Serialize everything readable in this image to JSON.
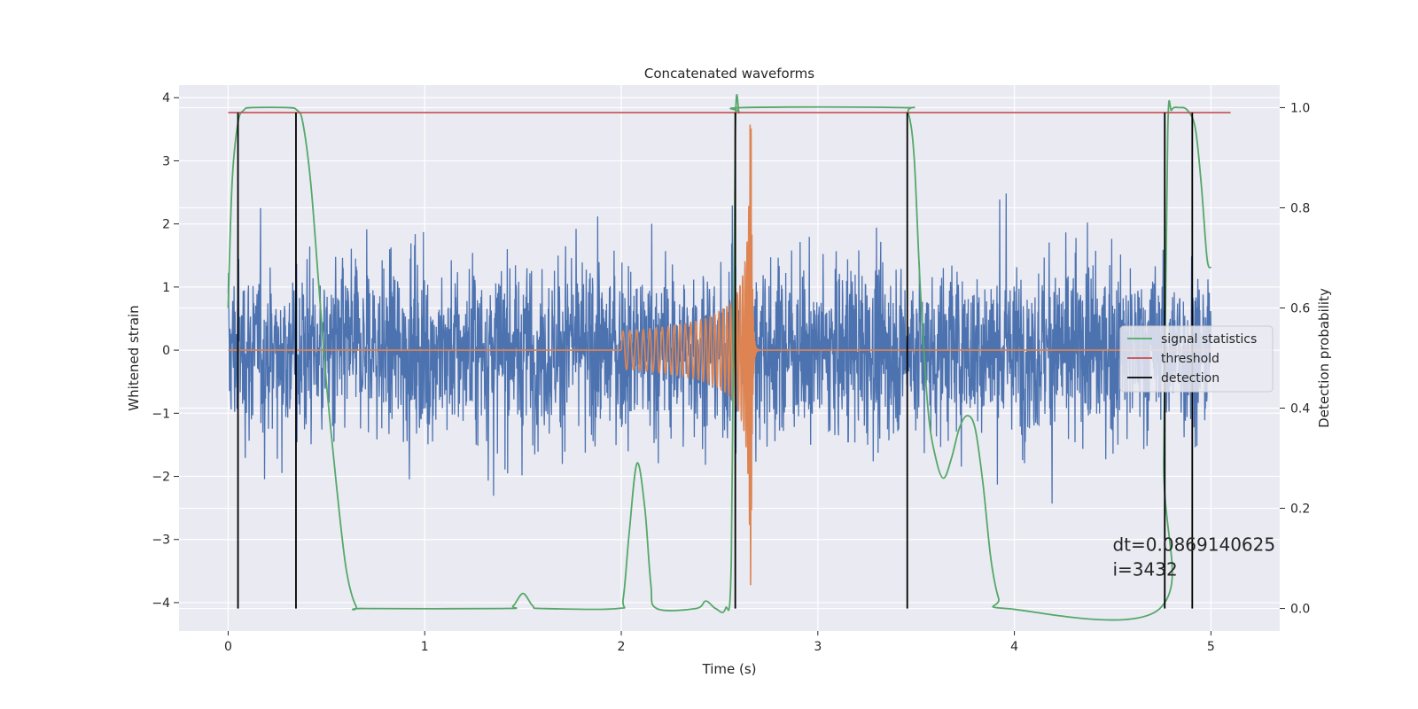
{
  "chart_data": {
    "type": "line",
    "title": "Concatenated waveforms",
    "xlabel": "Time (s)",
    "ylabel_left": "Whitened strain",
    "ylabel_right": "Detection probability",
    "xlim": [
      -0.25,
      5.35
    ],
    "ylim_left": [
      -4.45,
      4.2
    ],
    "ylim_right": [
      -0.045,
      1.045
    ],
    "x_ticks": [
      0,
      1,
      2,
      3,
      4,
      5
    ],
    "y_left_ticks": [
      -4,
      -3,
      -2,
      -1,
      0,
      1,
      2,
      3,
      4
    ],
    "y_right_ticks": [
      0.0,
      0.2,
      0.4,
      0.6,
      0.8,
      1.0
    ],
    "grid": true,
    "legend_position": "center-right",
    "series": [
      {
        "name": "",
        "axis": "left",
        "kind": "noise",
        "color": "#4c72b0",
        "x_range": [
          0,
          5
        ],
        "amplitude_typical": 1.0,
        "peak_max": 3.2,
        "peak_min": -3.4
      },
      {
        "name": "",
        "axis": "left",
        "kind": "chirp",
        "color": "#dd8452",
        "start": 2.0,
        "merger": 2.66,
        "end": 2.72,
        "peak": 3.8,
        "trough": -3.4
      },
      {
        "name": "signal statistics",
        "axis": "right",
        "color": "#55a868",
        "points": [
          [
            0.0,
            0.6
          ],
          [
            0.02,
            0.85
          ],
          [
            0.05,
            0.97
          ],
          [
            0.08,
            0.995
          ],
          [
            0.12,
            1.0
          ],
          [
            0.3,
            1.0
          ],
          [
            0.35,
            0.995
          ],
          [
            0.38,
            0.97
          ],
          [
            0.42,
            0.85
          ],
          [
            0.46,
            0.65
          ],
          [
            0.5,
            0.45
          ],
          [
            0.55,
            0.25
          ],
          [
            0.6,
            0.08
          ],
          [
            0.65,
            0.005
          ],
          [
            0.7,
            0.0
          ],
          [
            1.4,
            0.0
          ],
          [
            1.45,
            0.005
          ],
          [
            1.5,
            0.03
          ],
          [
            1.55,
            0.005
          ],
          [
            1.6,
            0.0
          ],
          [
            1.98,
            0.0
          ],
          [
            2.01,
            0.02
          ],
          [
            2.04,
            0.15
          ],
          [
            2.08,
            0.29
          ],
          [
            2.12,
            0.2
          ],
          [
            2.15,
            0.05
          ],
          [
            2.18,
            0.0
          ],
          [
            2.38,
            0.0
          ],
          [
            2.43,
            0.015
          ],
          [
            2.48,
            0.0
          ],
          [
            2.53,
            0.0
          ],
          [
            2.56,
            0.1
          ],
          [
            2.58,
            0.95
          ],
          [
            2.6,
            0.99
          ],
          [
            2.62,
            1.0
          ],
          [
            3.42,
            1.0
          ],
          [
            3.46,
            0.99
          ],
          [
            3.49,
            0.9
          ],
          [
            3.52,
            0.65
          ],
          [
            3.56,
            0.4
          ],
          [
            3.6,
            0.3
          ],
          [
            3.64,
            0.26
          ],
          [
            3.68,
            0.3
          ],
          [
            3.72,
            0.36
          ],
          [
            3.76,
            0.385
          ],
          [
            3.8,
            0.36
          ],
          [
            3.84,
            0.25
          ],
          [
            3.88,
            0.1
          ],
          [
            3.92,
            0.02
          ],
          [
            3.96,
            0.0
          ],
          [
            4.74,
            0.0
          ],
          [
            4.76,
            0.3
          ],
          [
            4.78,
            0.95
          ],
          [
            4.8,
            0.995
          ],
          [
            4.84,
            1.0
          ],
          [
            4.88,
            0.995
          ],
          [
            4.92,
            0.96
          ],
          [
            4.95,
            0.85
          ],
          [
            4.98,
            0.7
          ],
          [
            5.0,
            0.68
          ]
        ]
      },
      {
        "name": "threshold",
        "axis": "right",
        "color": "#c44e52",
        "value": 0.99,
        "x_range": [
          0.0,
          5.1
        ]
      },
      {
        "name": "detection",
        "axis": "right",
        "color": "#000000",
        "x": [
          0.05,
          0.345,
          2.58,
          3.455,
          4.765,
          4.905
        ],
        "y_range": [
          0.0,
          0.99
        ]
      }
    ],
    "annotations": [
      {
        "text": "dt=0.0869140625",
        "x": 4.5,
        "y": -3.18
      },
      {
        "text": " i=3432",
        "x": 4.5,
        "y": -3.57
      }
    ]
  }
}
